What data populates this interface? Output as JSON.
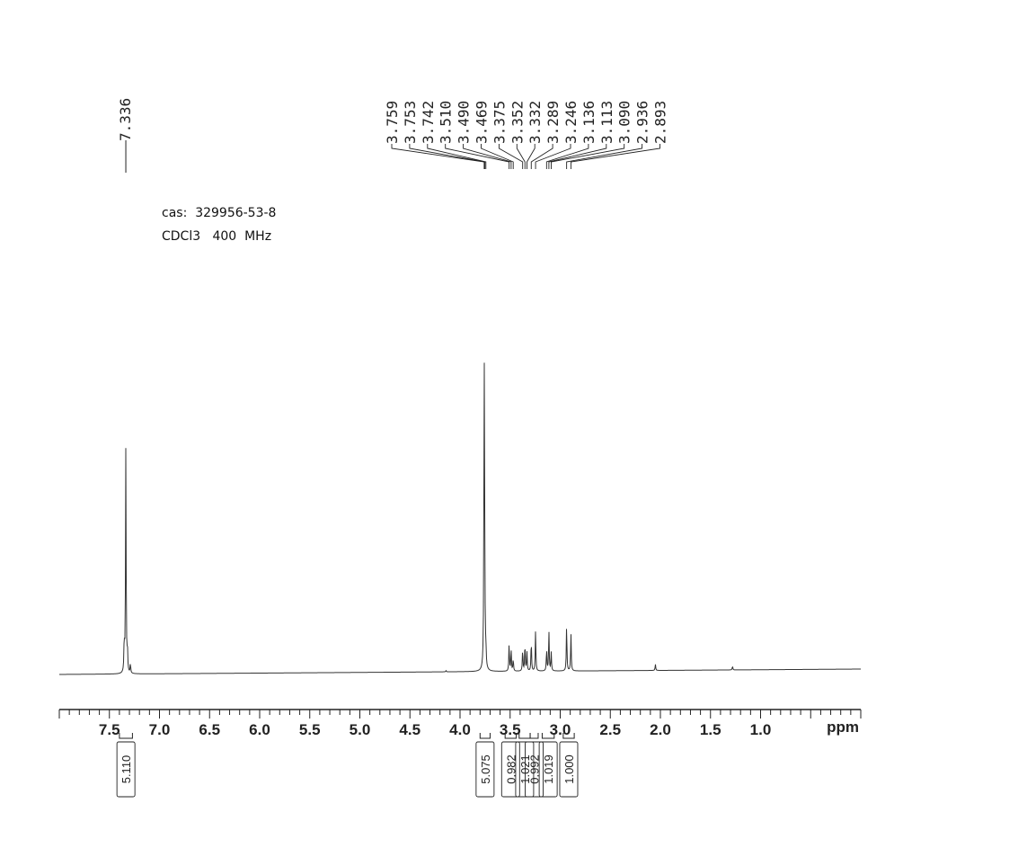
{
  "sample_label": "cas:  329956-53-8",
  "solvent_label": "CDCl3   400  MHz",
  "chart_data": {
    "type": "line",
    "title": "",
    "xlabel": "ppm",
    "ylabel": "",
    "x_reversed": true,
    "xlim": [
      8.0,
      0.0
    ],
    "grid": false,
    "x_ticks": [
      {
        "value": 7.5,
        "label": "7.5"
      },
      {
        "value": 7.0,
        "label": "7.0"
      },
      {
        "value": 6.5,
        "label": "6.5"
      },
      {
        "value": 6.0,
        "label": "6.0"
      },
      {
        "value": 5.5,
        "label": "5.5"
      },
      {
        "value": 5.0,
        "label": "5.0"
      },
      {
        "value": 4.5,
        "label": "4.5"
      },
      {
        "value": 4.0,
        "label": "4.0"
      },
      {
        "value": 3.5,
        "label": "3.5"
      },
      {
        "value": 3.0,
        "label": "3.0"
      },
      {
        "value": 2.5,
        "label": "2.5"
      },
      {
        "value": 2.0,
        "label": "2.0"
      },
      {
        "value": 1.5,
        "label": "1.5"
      },
      {
        "value": 1.0,
        "label": "1.0"
      }
    ],
    "peak_labels_left": [
      "7.336"
    ],
    "peak_labels_right": [
      "3.759",
      "3.753",
      "3.742",
      "3.510",
      "3.490",
      "3.469",
      "3.375",
      "3.352",
      "3.332",
      "3.289",
      "3.246",
      "3.136",
      "3.113",
      "3.090",
      "2.936",
      "2.893"
    ],
    "peaks": [
      {
        "ppm": 7.336,
        "height": 0.72
      },
      {
        "ppm": 7.352,
        "height": 0.1
      },
      {
        "ppm": 7.32,
        "height": 0.07
      },
      {
        "ppm": 7.29,
        "height": 0.03
      },
      {
        "ppm": 3.759,
        "height": 1.0
      },
      {
        "ppm": 3.753,
        "height": 0.24
      },
      {
        "ppm": 3.742,
        "height": 0.05
      },
      {
        "ppm": 3.51,
        "height": 0.09
      },
      {
        "ppm": 3.49,
        "height": 0.07
      },
      {
        "ppm": 3.469,
        "height": 0.04
      },
      {
        "ppm": 3.375,
        "height": 0.07
      },
      {
        "ppm": 3.352,
        "height": 0.09
      },
      {
        "ppm": 3.332,
        "height": 0.06
      },
      {
        "ppm": 3.289,
        "height": 0.1
      },
      {
        "ppm": 3.246,
        "height": 0.13
      },
      {
        "ppm": 3.136,
        "height": 0.07
      },
      {
        "ppm": 3.113,
        "height": 0.13
      },
      {
        "ppm": 3.09,
        "height": 0.06
      },
      {
        "ppm": 2.936,
        "height": 0.15
      },
      {
        "ppm": 2.893,
        "height": 0.12
      },
      {
        "ppm": 2.05,
        "height": 0.02
      },
      {
        "ppm": 1.28,
        "height": 0.012
      },
      {
        "ppm": 4.14,
        "height": 0.004
      }
    ],
    "integrals": [
      {
        "label": "5.110",
        "from": 7.4,
        "to": 7.27
      },
      {
        "label": "5.075",
        "from": 3.8,
        "to": 3.7
      },
      {
        "label": "0.982",
        "from": 3.55,
        "to": 3.44
      },
      {
        "label": "1.021",
        "from": 3.41,
        "to": 3.3
      },
      {
        "label": "0.992",
        "from": 3.3,
        "to": 3.22
      },
      {
        "label": "1.019",
        "from": 3.18,
        "to": 3.06
      },
      {
        "label": "1.000",
        "from": 2.97,
        "to": 2.86
      }
    ]
  }
}
